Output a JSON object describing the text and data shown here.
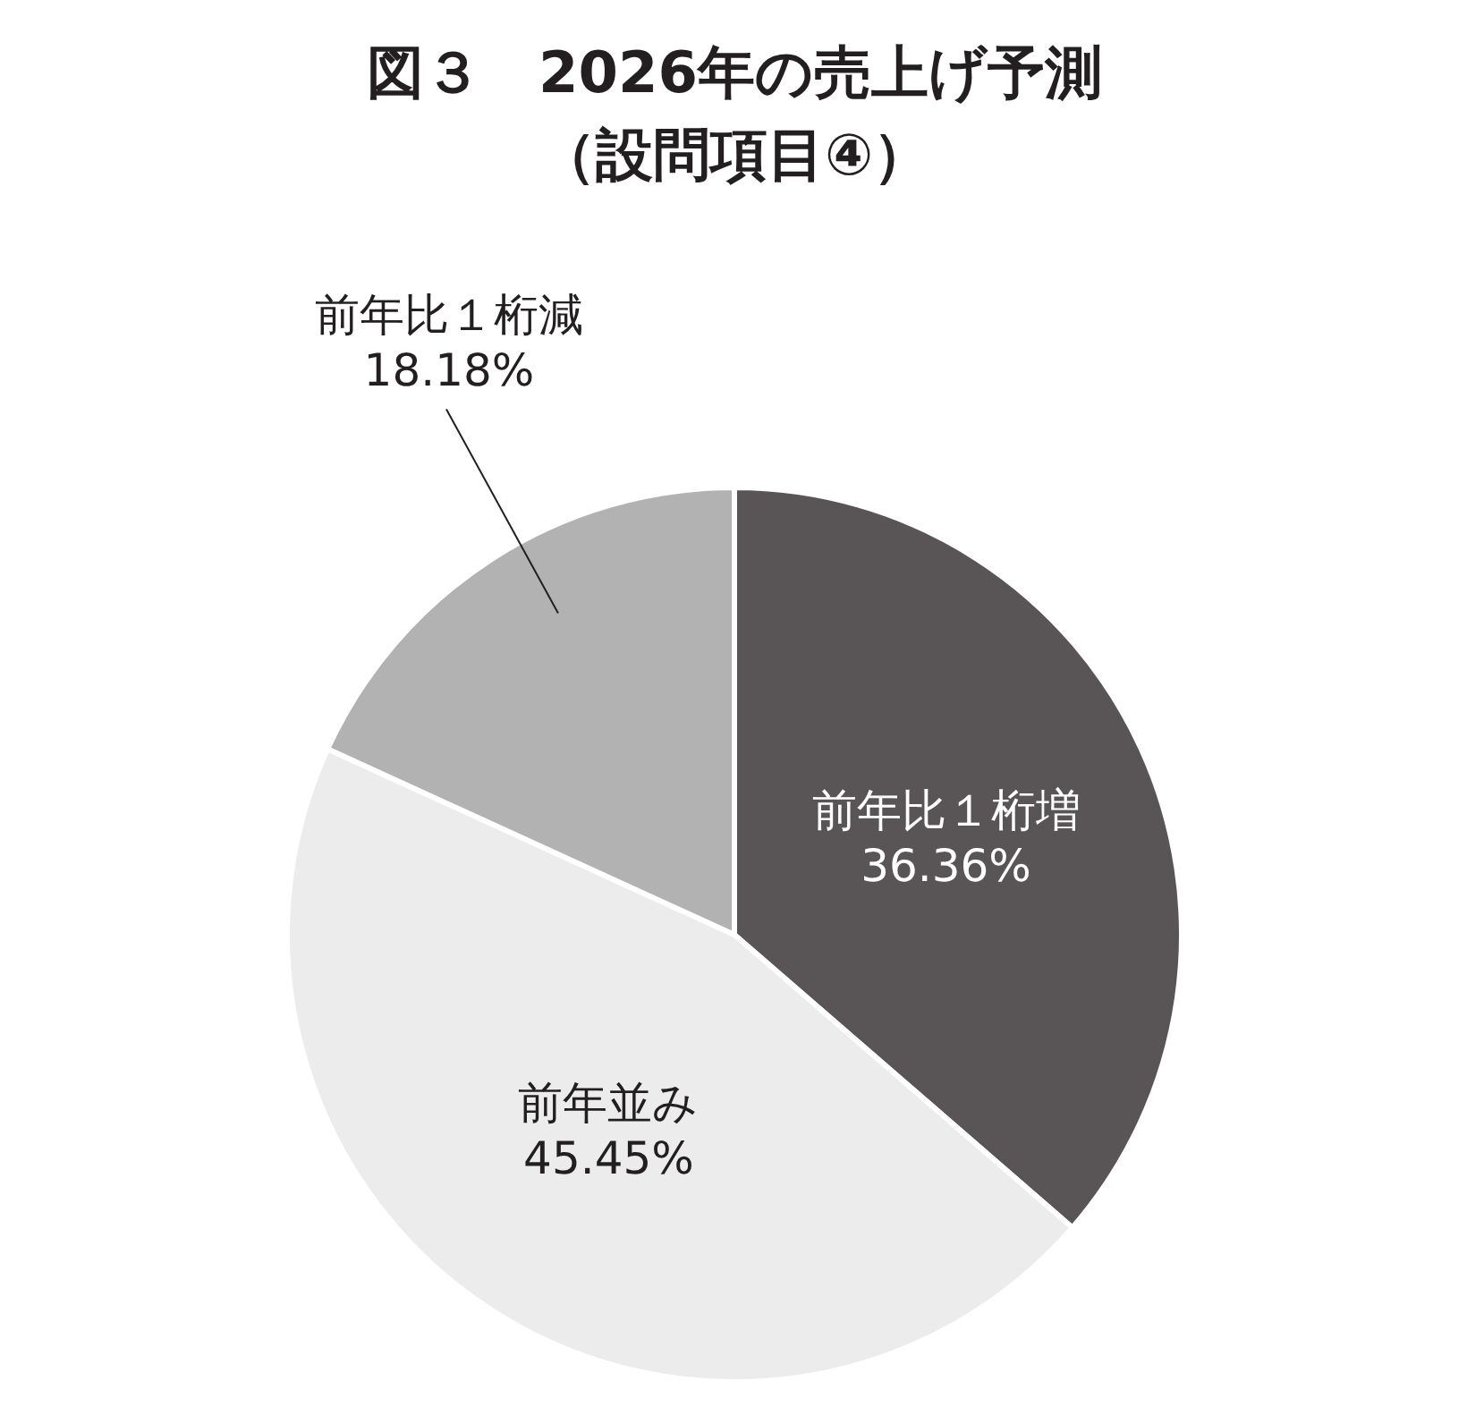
{
  "chart_data": {
    "type": "pie",
    "title": "図３　2026年の売上げ予測",
    "subtitle": "（設問項目④）",
    "categories": [
      "前年比１桁増",
      "前年並み",
      "前年比１桁減"
    ],
    "values": [
      36.36,
      45.45,
      18.18
    ],
    "colors": [
      "#595556",
      "#ececec",
      "#b2b2b2"
    ],
    "value_labels": [
      "36.36%",
      "45.45%",
      "18.18%"
    ]
  }
}
